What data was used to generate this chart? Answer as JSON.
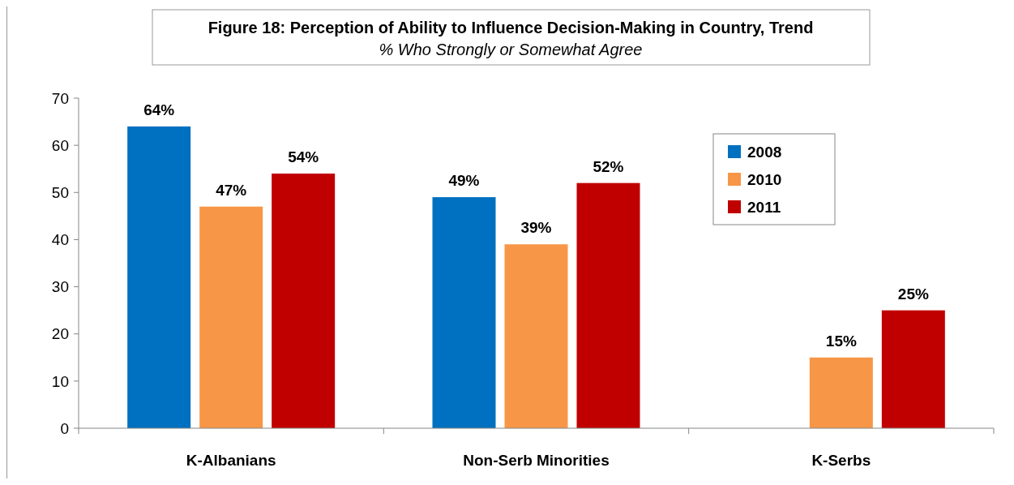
{
  "chart_data": {
    "type": "bar",
    "title": "Figure 18: Perception of Ability to Influence Decision-Making in Country, Trend",
    "subtitle": "% Who Strongly or Somewhat Agree",
    "categories": [
      "K-Albanians",
      "Non-Serb Minorities",
      "K-Serbs"
    ],
    "series": [
      {
        "name": "2008",
        "color": "#0070c0",
        "values": [
          64,
          49,
          null
        ],
        "value_labels": [
          "64%",
          "49%",
          null
        ]
      },
      {
        "name": "2010",
        "color": "#f79646",
        "values": [
          47,
          39,
          15
        ],
        "value_labels": [
          "47%",
          "39%",
          "15%"
        ]
      },
      {
        "name": "2011",
        "color": "#c00000",
        "values": [
          54,
          52,
          25
        ],
        "value_labels": [
          "54%",
          "52%",
          "25%"
        ]
      }
    ],
    "ylim": [
      0,
      70
    ],
    "yticks": [
      0,
      10,
      20,
      30,
      40,
      50,
      60,
      70
    ],
    "grid": false,
    "legend": "top right"
  }
}
